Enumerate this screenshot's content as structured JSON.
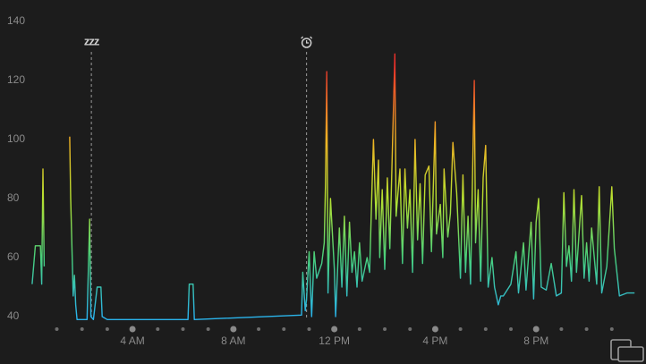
{
  "chart_data": {
    "type": "line",
    "x": [
      0.02,
      0.15,
      0.35,
      0.4,
      0.45,
      0.5,
      1.0,
      1.51,
      1.55,
      1.65,
      1.7,
      1.75,
      1.8,
      2.2,
      2.3,
      2.35,
      2.45,
      2.6,
      2.75,
      2.8,
      3.0,
      6.2,
      6.25,
      6.4,
      6.45,
      10.7,
      10.75,
      10.85,
      10.9,
      11.0,
      11.1,
      11.2,
      11.3,
      11.5,
      11.6,
      11.65,
      11.7,
      11.75,
      11.85,
      11.9,
      12.0,
      12.05,
      12.2,
      12.3,
      12.4,
      12.5,
      12.6,
      12.7,
      12.8,
      12.9,
      13.0,
      13.1,
      13.3,
      13.4,
      13.5,
      13.55,
      13.65,
      13.75,
      13.8,
      13.9,
      14.0,
      14.1,
      14.2,
      14.4,
      14.45,
      14.6,
      14.7,
      14.8,
      14.9,
      15.0,
      15.1,
      15.2,
      15.3,
      15.4,
      15.5,
      15.6,
      15.75,
      15.85,
      16.0,
      16.05,
      16.2,
      16.3,
      16.35,
      16.5,
      16.6,
      16.7,
      16.75,
      16.85,
      17.0,
      17.1,
      17.2,
      17.3,
      17.4,
      17.5,
      17.55,
      17.6,
      17.7,
      17.8,
      17.9,
      18.0,
      18.1,
      18.25,
      18.35,
      18.5,
      18.6,
      18.7,
      19.0,
      19.2,
      19.3,
      19.5,
      19.6,
      19.8,
      19.9,
      20.0,
      20.1,
      20.2,
      20.4,
      20.6,
      20.8,
      21.0,
      21.1,
      21.2,
      21.3,
      21.4,
      21.5,
      21.6,
      21.8,
      21.9,
      22.0,
      22.1,
      22.2,
      22.4,
      22.5,
      22.6,
      22.8,
      23.0,
      23.1,
      23.3,
      23.6,
      23.9
    ],
    "values": [
      51,
      64,
      64,
      51,
      90,
      57,
      null,
      101,
      80,
      47,
      54,
      44,
      39,
      39,
      73,
      40,
      39,
      50,
      50,
      40,
      39,
      39,
      51,
      51,
      39,
      40.5,
      55,
      42,
      46,
      62,
      40,
      62,
      53,
      58,
      65,
      85,
      123,
      48,
      80,
      72,
      56,
      40,
      70,
      50,
      74,
      47,
      72,
      55,
      62,
      50,
      65,
      52,
      60,
      55,
      85,
      100,
      73,
      93,
      60,
      83,
      56,
      87,
      63,
      129,
      74,
      90,
      58,
      90,
      70,
      83,
      55,
      100,
      66,
      85,
      58,
      88,
      91,
      62,
      106,
      68,
      78,
      60,
      90,
      67,
      75,
      99,
      93,
      82,
      53,
      88,
      55,
      74,
      51,
      97,
      120,
      65,
      83,
      52,
      87,
      98,
      50,
      60,
      50,
      44,
      47,
      47,
      51,
      62,
      48,
      65,
      49,
      72,
      46,
      72,
      80,
      50,
      49,
      58,
      47,
      48,
      82,
      57,
      64,
      52,
      83,
      55,
      81,
      53,
      65,
      52,
      70,
      51,
      84,
      48,
      57,
      84,
      63,
      47,
      48,
      48
    ],
    "xlim": [
      0,
      24
    ],
    "xticks": [
      {
        "value": 4,
        "label": "4 AM"
      },
      {
        "value": 8,
        "label": "8 AM"
      },
      {
        "value": 12,
        "label": "12 PM"
      },
      {
        "value": 16,
        "label": "4 PM"
      },
      {
        "value": 20,
        "label": "8 PM"
      }
    ],
    "xminor_ticks": [
      1,
      2,
      3,
      5,
      6,
      7,
      9,
      10,
      11,
      13,
      14,
      15,
      17,
      18,
      19,
      21,
      22,
      23
    ],
    "ylim": [
      37,
      141
    ],
    "yticks": [
      40,
      60,
      80,
      100,
      120,
      140
    ],
    "color_scale": [
      {
        "value": 40,
        "color": "#2ab4ec"
      },
      {
        "value": 60,
        "color": "#48d07c"
      },
      {
        "value": 80,
        "color": "#b6e030"
      },
      {
        "value": 100,
        "color": "#f0b224"
      },
      {
        "value": 125,
        "color": "#e8302a"
      }
    ],
    "events": [
      {
        "x": 2.37,
        "label": "zzz"
      },
      {
        "x": 10.9
      }
    ]
  }
}
